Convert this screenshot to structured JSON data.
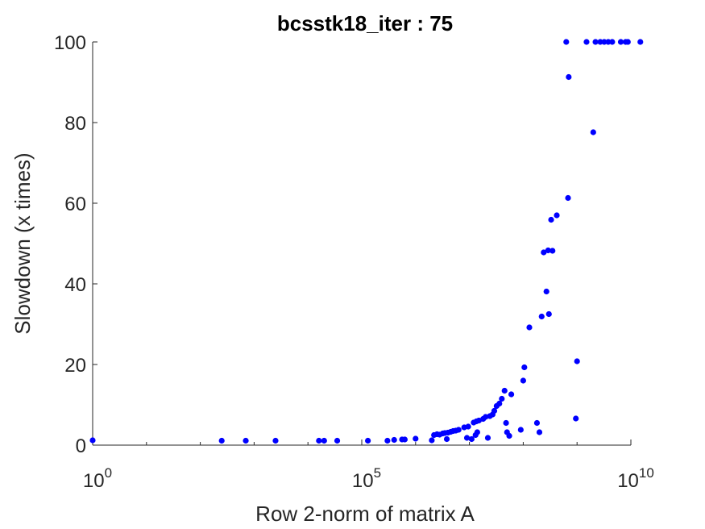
{
  "chart_data": {
    "type": "scatter",
    "title": "bcsstk18_iter : 75",
    "xlabel": "Row 2-norm of matrix A",
    "ylabel": "Slowdown (x times)",
    "xscale": "log",
    "xlim": [
      1,
      10000000000.0
    ],
    "ylim": [
      0,
      100
    ],
    "x_ticks": [
      {
        "value": 1,
        "base": "10",
        "exp": "0"
      },
      {
        "value": 100000,
        "base": "10",
        "exp": "5"
      },
      {
        "value": 10000000000,
        "base": "10",
        "exp": "10"
      }
    ],
    "y_ticks": [
      {
        "value": 0,
        "label": "0"
      },
      {
        "value": 20,
        "label": "20"
      },
      {
        "value": 40,
        "label": "40"
      },
      {
        "value": 60,
        "label": "60"
      },
      {
        "value": 80,
        "label": "80"
      },
      {
        "value": 100,
        "label": "100"
      }
    ],
    "grid": false,
    "box": false,
    "marker_color": "#0000ff",
    "series": [
      {
        "points": [
          [
            1.0,
            1.2
          ],
          [
            250.0,
            1.1
          ],
          [
            700.0,
            1.1
          ],
          [
            2500.0,
            1.1
          ],
          [
            16000.0,
            1.1
          ],
          [
            20000.0,
            1.1
          ],
          [
            35000.0,
            1.1
          ],
          [
            130000.0,
            1.1
          ],
          [
            300000.0,
            1.1
          ],
          [
            400000.0,
            1.3
          ],
          [
            560000.0,
            1.4
          ],
          [
            630000.0,
            1.4
          ],
          [
            1000000.0,
            1.6
          ],
          [
            2000000.0,
            1.2
          ],
          [
            2200000.0,
            2.5
          ],
          [
            2500000.0,
            2.7
          ],
          [
            2800000.0,
            2.6
          ],
          [
            3200000.0,
            2.9
          ],
          [
            3500000.0,
            3.0
          ],
          [
            3800000.0,
            1.5
          ],
          [
            4000000.0,
            3.1
          ],
          [
            4500000.0,
            3.3
          ],
          [
            5000000.0,
            3.5
          ],
          [
            5600000.0,
            3.6
          ],
          [
            6300000.0,
            3.8
          ],
          [
            8000000.0,
            4.4
          ],
          [
            9000000.0,
            1.8
          ],
          [
            9500000.0,
            4.6
          ],
          [
            11000000.0,
            1.5
          ],
          [
            12000000.0,
            5.6
          ],
          [
            13000000.0,
            2.5
          ],
          [
            13500000.0,
            5.9
          ],
          [
            14000000.0,
            3.2
          ],
          [
            15000000.0,
            6.1
          ],
          [
            18000000.0,
            6.5
          ],
          [
            20000000.0,
            7.0
          ],
          [
            22000000.0,
            1.8
          ],
          [
            24000000.0,
            7.2
          ],
          [
            27000000.0,
            7.6
          ],
          [
            29000000.0,
            8.5
          ],
          [
            32000000.0,
            9.7
          ],
          [
            36000000.0,
            10.3
          ],
          [
            40000000.0,
            11.5
          ],
          [
            45000000.0,
            13.5
          ],
          [
            48000000.0,
            5.5
          ],
          [
            50000000.0,
            3.2
          ],
          [
            55000000.0,
            2.3
          ],
          [
            60000000.0,
            12.6
          ],
          [
            90000000.0,
            3.8
          ],
          [
            100000000.0,
            16.0
          ],
          [
            105000000.0,
            19.3
          ],
          [
            130000000.0,
            29.2
          ],
          [
            180000000.0,
            5.5
          ],
          [
            200000000.0,
            3.2
          ],
          [
            220000000.0,
            31.9
          ],
          [
            240000000.0,
            47.8
          ],
          [
            270000000.0,
            38.1
          ],
          [
            290000000.0,
            48.3
          ],
          [
            300000000.0,
            32.5
          ],
          [
            330000000.0,
            55.9
          ],
          [
            350000000.0,
            48.2
          ],
          [
            420000000.0,
            57.0
          ],
          [
            630000000.0,
            100.0
          ],
          [
            680000000.0,
            61.3
          ],
          [
            700000000.0,
            91.3
          ],
          [
            950000000.0,
            6.6
          ],
          [
            1000000000.0,
            20.8
          ],
          [
            1500000000.0,
            100.0
          ],
          [
            2000000000.0,
            77.6
          ],
          [
            2200000000.0,
            100.0
          ],
          [
            2700000000.0,
            100.0
          ],
          [
            3200000000.0,
            100.0
          ],
          [
            3800000000.0,
            100.0
          ],
          [
            4500000000.0,
            100.0
          ],
          [
            6500000000.0,
            100.0
          ],
          [
            8000000000.0,
            100.0
          ],
          [
            8800000000.0,
            100.0
          ],
          [
            15000000000.0,
            100.0
          ]
        ]
      }
    ]
  }
}
